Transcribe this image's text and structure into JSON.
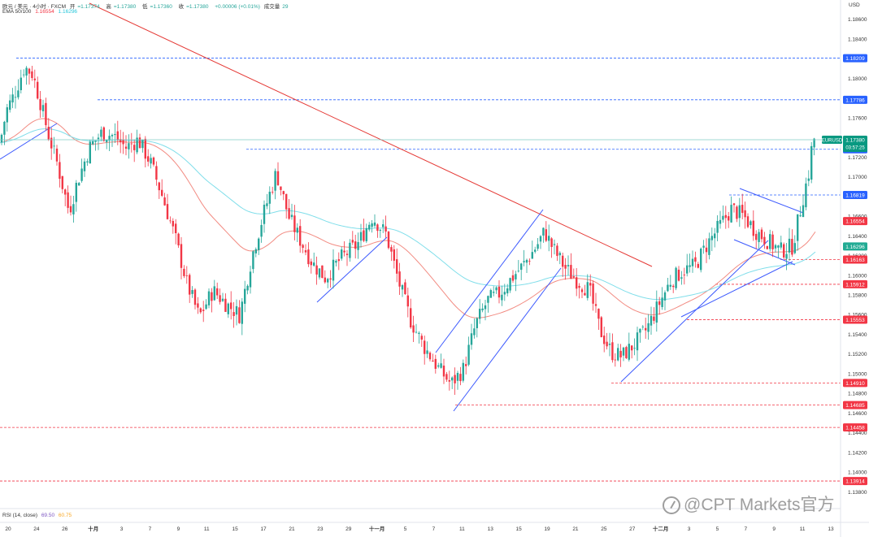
{
  "header": {
    "symbol_line": "欧元 / 美元 · 4小时 · FXCM",
    "open_label": "开",
    "open_value": "=1.17374",
    "high_label": "高",
    "high_value": "=1.17380",
    "low_label": "低",
    "low_value": "=1.17360",
    "close_label": "收",
    "close_value": "=1.17380",
    "change": "+0.00006 (+0.01%)",
    "volume_label": "成交量",
    "volume_value": "29",
    "ema_label": "EMA 50/100",
    "ema50_value": "1.16554",
    "ema100_value": "1.16296",
    "rsi_label": "RSI (14, close)",
    "rsi_value_1": "69.50",
    "rsi_value_2": "60.75",
    "currency": "USD"
  },
  "watermark": {
    "text": "@CPT Markets官方"
  },
  "colors": {
    "up": "#26a69a",
    "down": "#f23645",
    "ema50": "#f28b82",
    "ema100": "#80deea",
    "trend_red": "#e53935",
    "channel_blue": "#3d5afe",
    "level_blue": "#2962ff",
    "level_red": "#f23645",
    "price_tag": "#089981"
  },
  "chart_data": {
    "type": "candlestick",
    "symbol": "EURUSD",
    "timeframe": "4H",
    "y_range": [
      1.137,
      1.1875
    ],
    "y_ticks": [
      "1.18600",
      "1.18400",
      "1.18200",
      "1.18000",
      "1.17800",
      "1.17600",
      "1.17400",
      "1.17200",
      "1.17000",
      "1.16800",
      "1.16600",
      "1.16400",
      "1.16200",
      "1.16000",
      "1.15800",
      "1.15600",
      "1.15400",
      "1.15200",
      "1.15000",
      "1.14800",
      "1.14600",
      "1.14400",
      "1.14200",
      "1.14000",
      "1.13800"
    ],
    "x_ticks": [
      "20",
      "24",
      "26",
      "十月",
      "3",
      "7",
      "9",
      "11",
      "15",
      "17",
      "21",
      "23",
      "29",
      "十一月",
      "5",
      "7",
      "11",
      "13",
      "15",
      "19",
      "21",
      "25",
      "27",
      "十二月",
      "3",
      "5",
      "7",
      "9",
      "11",
      "13"
    ],
    "current_price": {
      "label": "EURUSD",
      "price": "1.17380",
      "countdown": "03:57:25"
    },
    "price_labels": [
      {
        "value": "1.18209",
        "color": "blue",
        "price": 1.18209
      },
      {
        "value": "1.17786",
        "color": "blue",
        "price": 1.17786
      },
      {
        "value": "1.17283",
        "color": "blue",
        "price": 1.17283
      },
      {
        "value": "1.16819",
        "color": "blue",
        "price": 1.16819
      },
      {
        "value": "1.16554",
        "color": "red",
        "price": 1.16554
      },
      {
        "value": "1.16296",
        "color": "green",
        "price": 1.16296
      },
      {
        "value": "1.16163",
        "color": "red",
        "price": 1.16163
      },
      {
        "value": "1.15912",
        "color": "red",
        "price": 1.15912
      },
      {
        "value": "1.15553",
        "color": "red",
        "price": 1.15553
      },
      {
        "value": "1.14910",
        "color": "red",
        "price": 1.1491
      },
      {
        "value": "1.14685",
        "color": "red",
        "price": 1.14685
      },
      {
        "value": "1.14458",
        "color": "red",
        "price": 1.14458
      },
      {
        "value": "1.13914",
        "color": "red",
        "price": 1.13914
      }
    ],
    "series": [
      {
        "name": "EMA 50",
        "value": 1.16554
      },
      {
        "name": "EMA 100",
        "value": 1.16296
      }
    ],
    "close_path": [
      [
        0,
        1.1735
      ],
      [
        8,
        1.1768
      ],
      [
        18,
        1.1785
      ],
      [
        30,
        1.1812
      ],
      [
        40,
        1.1805
      ],
      [
        50,
        1.1775
      ],
      [
        60,
        1.1742
      ],
      [
        70,
        1.1715
      ],
      [
        78,
        1.1688
      ],
      [
        85,
        1.1665
      ],
      [
        95,
        1.1695
      ],
      [
        110,
        1.173
      ],
      [
        125,
        1.1745
      ],
      [
        140,
        1.1742
      ],
      [
        155,
        1.173
      ],
      [
        170,
        1.1738
      ],
      [
        185,
        1.1715
      ],
      [
        200,
        1.168
      ],
      [
        215,
        1.164
      ],
      [
        230,
        1.1592
      ],
      [
        245,
        1.1558
      ],
      [
        262,
        1.1585
      ],
      [
        280,
        1.157
      ],
      [
        295,
        1.156
      ],
      [
        310,
        1.162
      ],
      [
        325,
        1.1665
      ],
      [
        340,
        1.1705
      ],
      [
        355,
        1.166
      ],
      [
        370,
        1.1635
      ],
      [
        385,
        1.1612
      ],
      [
        400,
        1.1598
      ],
      [
        420,
        1.1618
      ],
      [
        440,
        1.1632
      ],
      [
        458,
        1.166
      ],
      [
        475,
        1.1642
      ],
      [
        490,
        1.1595
      ],
      [
        505,
        1.1555
      ],
      [
        520,
        1.153
      ],
      [
        540,
        1.1505
      ],
      [
        555,
        1.149
      ],
      [
        570,
        1.1505
      ],
      [
        585,
        1.155
      ],
      [
        600,
        1.1575
      ],
      [
        615,
        1.1582
      ],
      [
        630,
        1.1598
      ],
      [
        645,
        1.1612
      ],
      [
        660,
        1.163
      ],
      [
        670,
        1.1645
      ],
      [
        680,
        1.1628
      ],
      [
        695,
        1.1608
      ],
      [
        710,
        1.1595
      ],
      [
        725,
        1.1585
      ],
      [
        738,
        1.1545
      ],
      [
        752,
        1.1522
      ],
      [
        765,
        1.1518
      ],
      [
        780,
        1.153
      ],
      [
        795,
        1.1545
      ],
      [
        810,
        1.157
      ],
      [
        825,
        1.1595
      ],
      [
        840,
        1.1605
      ],
      [
        855,
        1.161
      ],
      [
        870,
        1.1632
      ],
      [
        885,
        1.165
      ],
      [
        900,
        1.1668
      ],
      [
        915,
        1.166
      ],
      [
        930,
        1.1645
      ],
      [
        945,
        1.1635
      ],
      [
        960,
        1.1625
      ],
      [
        975,
        1.163
      ],
      [
        988,
        1.168
      ],
      [
        995,
        1.1705
      ],
      [
        1000,
        1.174
      ],
      [
        1005,
        1.1738
      ]
    ]
  }
}
